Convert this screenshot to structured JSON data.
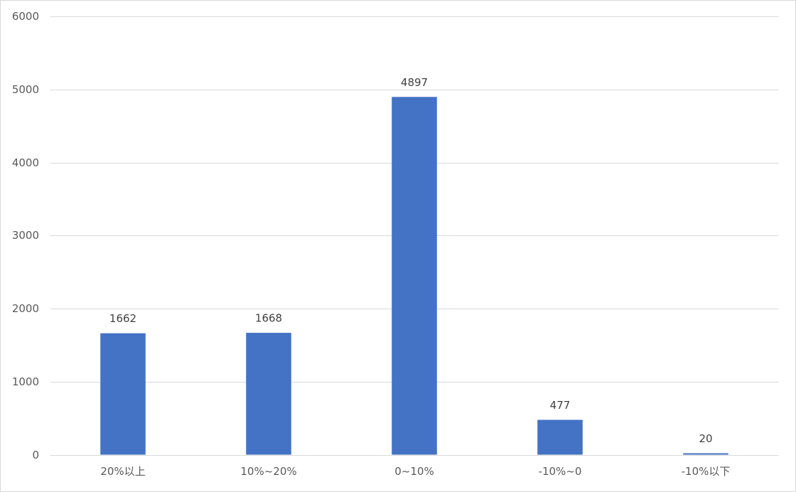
{
  "chart_data": {
    "type": "bar",
    "categories": [
      "20%以上",
      "10%~20%",
      "0~10%",
      "-10%~0",
      "-10%以下"
    ],
    "values": [
      1662,
      1668,
      4897,
      477,
      20
    ],
    "color": "#4472c4",
    "ylim": [
      0,
      6000
    ],
    "yticks": [
      0,
      1000,
      2000,
      3000,
      4000,
      5000,
      6000
    ],
    "grid": true
  }
}
